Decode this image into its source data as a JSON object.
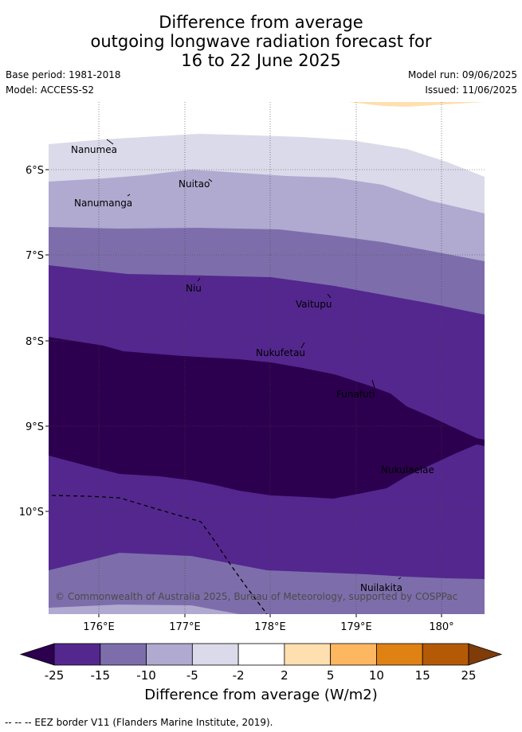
{
  "header": {
    "title_lines": [
      "Difference from average",
      "outgoing longwave radiation forecast for",
      "16 to 22 June 2025"
    ],
    "base_period": "Base period: 1981-2018",
    "model": "Model: ACCESS-S2",
    "model_run": "Model run: 09/06/2025",
    "issued": "Issued: 11/06/2025"
  },
  "map": {
    "lon_labels": [
      "176°E",
      "177°E",
      "178°E",
      "179°E",
      "180°"
    ],
    "lat_labels": [
      "6°S",
      "7°S",
      "8°S",
      "9°S",
      "10°S"
    ],
    "places": [
      {
        "name": "Nanumea"
      },
      {
        "name": "Nuitao"
      },
      {
        "name": "Nanumanga"
      },
      {
        "name": "Niu"
      },
      {
        "name": "Vaitupu"
      },
      {
        "name": "Nukufetau"
      },
      {
        "name": "Funafuti"
      },
      {
        "name": "Nukulaelae"
      },
      {
        "name": "Nuilakita"
      }
    ],
    "copyright": "© Commonwealth of Australia 2025, Bureau of Meteorology, supported by COSPPac"
  },
  "colorbar": {
    "ticks": [
      "-25",
      "-15",
      "-10",
      "-5",
      "-2",
      "2",
      "5",
      "10",
      "15",
      "25"
    ],
    "colors": [
      "#2c004f",
      "#54278f",
      "#7d6eab",
      "#b0a9d0",
      "#dadaea",
      "#ffffff",
      "#fedfb0",
      "#fdb761",
      "#e08114",
      "#b45a06",
      "#7f3b08"
    ],
    "title": "Difference from average (W/m2)"
  },
  "footer": {
    "legend_text": "-- -- -- EEZ border V11 (Flanders Marine Institute, 2019)."
  }
}
